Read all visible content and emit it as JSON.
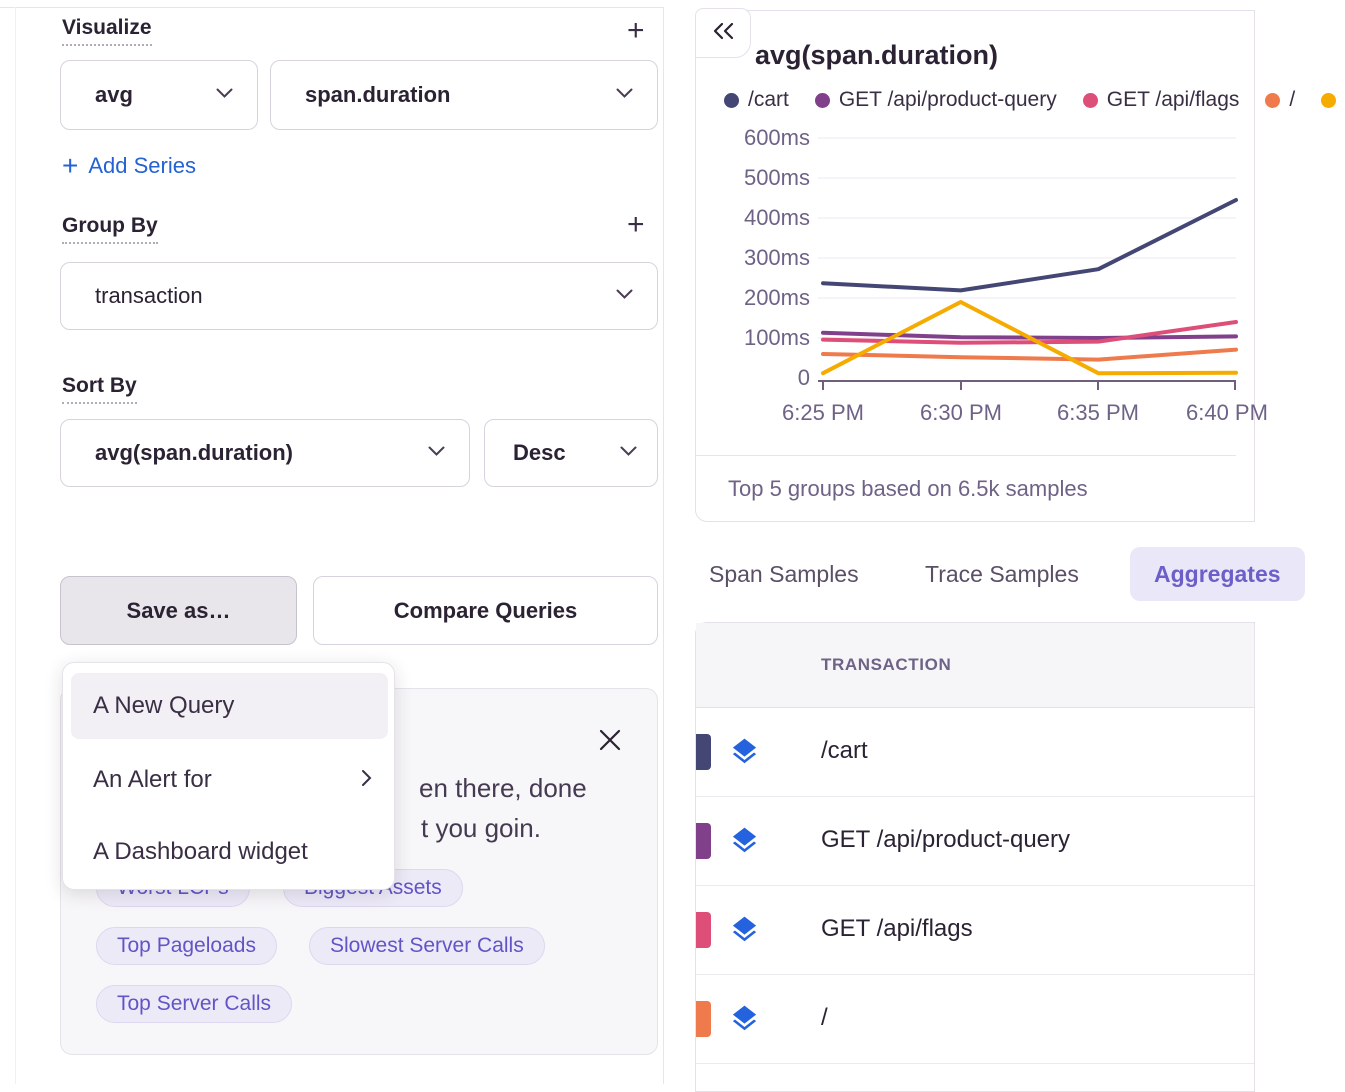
{
  "left_panel": {
    "visualize": {
      "label": "Visualize",
      "add_icon": "+",
      "aggregate": "avg",
      "field": "span.duration",
      "add_series_label": "Add Series"
    },
    "group_by": {
      "label": "Group By",
      "add_icon": "+",
      "value": "transaction"
    },
    "sort_by": {
      "label": "Sort By",
      "field": "avg(span.duration)",
      "direction": "Desc"
    },
    "actions": {
      "save_as_label": "Save as…",
      "compare_label": "Compare Queries"
    },
    "save_menu": {
      "items": [
        {
          "label": "A New Query"
        },
        {
          "label": "An Alert for"
        },
        {
          "label": "A Dashboard widget"
        }
      ]
    },
    "suggested_card": {
      "message_line1": "en there, done",
      "message_line2": "t you goin.",
      "chips_row1": [
        "Worst LCPs",
        "Biggest Assets"
      ],
      "chips_row2": [
        "Top Pageloads",
        "Slowest Server Calls"
      ],
      "chips_row3": [
        "Top Server Calls"
      ]
    }
  },
  "right_panel": {
    "chart_title": "avg(span.duration)",
    "footer": "Top 5 groups based on 6.5k samples",
    "tabs": [
      {
        "label": "Span Samples",
        "active": false
      },
      {
        "label": "Trace Samples",
        "active": false
      },
      {
        "label": "Aggregates",
        "active": true
      }
    ],
    "table": {
      "header": "TRANSACTION",
      "rows": [
        {
          "label": "/cart",
          "color": "#444674"
        },
        {
          "label": "GET /api/product-query",
          "color": "#80418A"
        },
        {
          "label": "GET /api/flags",
          "color": "#DD4E79"
        },
        {
          "label": "/",
          "color": "#EF7A4C"
        }
      ]
    }
  },
  "chart_data": {
    "type": "line",
    "title": "avg(span.duration)",
    "unit": "ms",
    "x": [
      "6:25 PM",
      "6:30 PM",
      "6:35 PM",
      "6:40 PM"
    ],
    "ylim": [
      0,
      620
    ],
    "yticks": [
      "600ms",
      "500ms",
      "400ms",
      "300ms",
      "200ms",
      "100ms",
      "0"
    ],
    "grid": true,
    "legend_position": "top",
    "footer": "Top 5 groups based on 6.5k samples",
    "series": [
      {
        "name": "/cart",
        "color": "#444674",
        "values": [
          237,
          219,
          272,
          445
        ]
      },
      {
        "name": "GET /api/product-query",
        "color": "#80418A",
        "values": [
          113,
          102,
          100,
          104
        ]
      },
      {
        "name": "GET /api/flags",
        "color": "#DD4E79",
        "values": [
          96,
          88,
          91,
          140
        ]
      },
      {
        "name": "/",
        "color": "#EF7A4C",
        "values": [
          60,
          52,
          46,
          71
        ]
      },
      {
        "name": "",
        "color": "#F5AB00",
        "values": [
          12,
          190,
          12,
          13
        ]
      }
    ]
  }
}
